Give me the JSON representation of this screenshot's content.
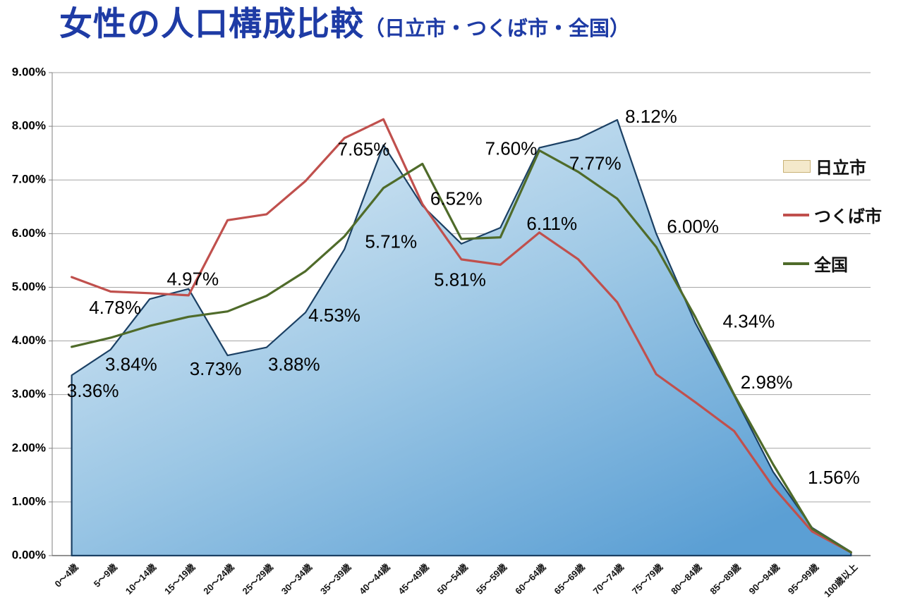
{
  "title": {
    "main": "女性の人口構成比較",
    "sub": "（日立市・つくば市・全国）"
  },
  "legend": {
    "items": [
      {
        "label": "日立市",
        "type": "area",
        "fill": "#f4e9cb",
        "border": "#c9b277"
      },
      {
        "label": "つくば市",
        "type": "line",
        "color": "#c0504d"
      },
      {
        "label": "全国",
        "type": "line",
        "color": "#4f6b2a"
      }
    ]
  },
  "chart_data": {
    "type": "area",
    "title": "女性の人口構成比較（日立市・つくば市・全国）",
    "categories": [
      "0～4歳",
      "5～9歳",
      "10～14歳",
      "15～19歳",
      "20～24歳",
      "25～29歳",
      "30～34歳",
      "35～39歳",
      "40～44歳",
      "45～49歳",
      "50～54歳",
      "55～59歳",
      "60～64歳",
      "65～69歳",
      "70～74歳",
      "75～79歳",
      "80～84歳",
      "85～89歳",
      "90～94歳",
      "95～99歳",
      "100歳以上"
    ],
    "ylim": [
      0,
      9
    ],
    "y_ticks": [
      "0.00%",
      "1.00%",
      "2.00%",
      "3.00%",
      "4.00%",
      "5.00%",
      "6.00%",
      "7.00%",
      "8.00%",
      "9.00%"
    ],
    "grid": true,
    "legend_position": "right",
    "series": [
      {
        "name": "日立市",
        "type": "area",
        "stroke": "#1b4064",
        "fill_gradient": [
          "#e7f1f8",
          "#9cc7e5",
          "#5b9fd4"
        ],
        "values": [
          3.36,
          3.84,
          4.78,
          4.97,
          3.73,
          3.88,
          4.53,
          5.71,
          7.65,
          6.52,
          5.81,
          6.11,
          7.6,
          7.77,
          8.12,
          6.0,
          4.34,
          2.98,
          1.56,
          0.52,
          0.07
        ],
        "data_labels": [
          "3.36%",
          "3.84%",
          "4.78%",
          "4.97%",
          "3.73%",
          "3.88%",
          "4.53%",
          "5.71%",
          "7.65%",
          "6.52%",
          "5.81%",
          "6.11%",
          "7.60%",
          "7.77%",
          "8.12%",
          "6.00%",
          "4.34%",
          "2.98%",
          "1.56%",
          null,
          null
        ]
      },
      {
        "name": "つくば市",
        "type": "line",
        "stroke": "#c0504d",
        "values": [
          5.19,
          4.92,
          4.89,
          4.85,
          6.25,
          6.36,
          6.98,
          7.78,
          8.13,
          6.55,
          5.52,
          5.42,
          6.02,
          5.52,
          4.72,
          3.38,
          2.86,
          2.32,
          1.28,
          0.45,
          0.06
        ]
      },
      {
        "name": "全国",
        "type": "line",
        "stroke": "#4f6b2a",
        "values": [
          3.89,
          4.06,
          4.28,
          4.45,
          4.55,
          4.84,
          5.3,
          5.95,
          6.85,
          7.3,
          5.9,
          5.93,
          7.55,
          7.15,
          6.65,
          5.75,
          4.45,
          3.0,
          1.7,
          0.5,
          0.06
        ]
      }
    ]
  }
}
